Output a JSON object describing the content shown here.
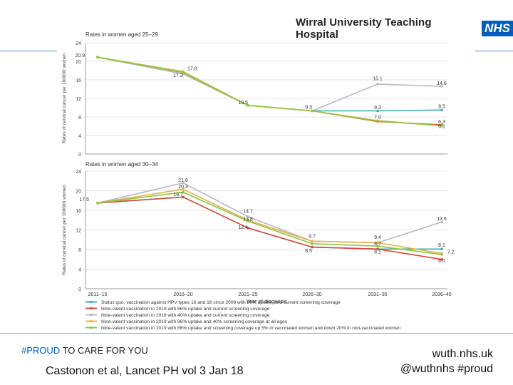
{
  "header": {
    "org_name": "Wirral University Teaching Hospital",
    "logo_text": "NHS"
  },
  "footer": {
    "tag_accent": "#PROUD",
    "tag_rest": " TO CARE FOR YOU",
    "citation": "Castonon et al, Lancet PH vol 3 Jan 18",
    "web": "wuth.nhs.uk",
    "social": "@wuthnhs #proud"
  },
  "colors": {
    "nhs_blue": "#005eb8"
  },
  "chart_data": [
    {
      "type": "line",
      "title": "Rates in women aged 25–29",
      "ylabel": "Rates of cervical cancer per 100000 women",
      "ylim": [
        0,
        24
      ],
      "yticks": [
        0,
        4,
        8,
        12,
        16,
        20,
        24
      ],
      "categories": [
        "2011–15",
        "2016–20",
        "2021–25",
        "2026–30",
        "2031–35",
        "2036–40"
      ],
      "series": [
        {
          "color": "#3fa9b8",
          "values": [
            20.9,
            17.3,
            10.5,
            9.3,
            9.3,
            9.5
          ]
        },
        {
          "color": "#d94a3a",
          "values": [
            20.9,
            17.3,
            10.5,
            9.3,
            7.0,
            6.3
          ]
        },
        {
          "color": "#b8b8c8",
          "values": [
            20.9,
            17.3,
            10.5,
            9.3,
            15.1,
            14.6
          ]
        },
        {
          "color": "#e8b04a",
          "values": [
            20.9,
            17.8,
            10.5,
            9.3,
            7.2,
            6.1
          ]
        },
        {
          "color": "#8cc63f",
          "values": [
            20.9,
            17.6,
            10.5,
            9.3,
            7.1,
            6.1
          ]
        }
      ],
      "data_labels": [
        "20.9",
        "17.8",
        "17.3",
        "10.5",
        "9.3",
        "15.1",
        "14.6",
        "9.3",
        "7.0",
        "9.5",
        "6.3",
        "6.1"
      ]
    },
    {
      "type": "line",
      "title": "Rates in women aged 30–34",
      "ylabel": "Rates of cervical cancer per 100000 women",
      "ylim": [
        0,
        24
      ],
      "yticks": [
        0,
        4,
        8,
        12,
        16,
        20,
        24
      ],
      "xlabel": "Year of diagnosis",
      "categories": [
        "2011–15",
        "2016–20",
        "2021–25",
        "2026–30",
        "2031–35",
        "2036–40"
      ],
      "series": [
        {
          "color": "#3fa9b8",
          "values": [
            17.5,
            18.7,
            12.4,
            8.5,
            8.1,
            8.1
          ]
        },
        {
          "color": "#d94a3a",
          "values": [
            17.5,
            18.7,
            12.4,
            8.5,
            8.1,
            6.0
          ]
        },
        {
          "color": "#b8b8c8",
          "values": [
            17.5,
            21.6,
            14.7,
            9.7,
            9.4,
            13.6
          ]
        },
        {
          "color": "#e8b04a",
          "values": [
            17.5,
            20.3,
            14.0,
            9.7,
            9.4,
            7.2
          ]
        },
        {
          "color": "#8cc63f",
          "values": [
            17.5,
            19.7,
            13.8,
            9.2,
            8.7,
            7.0
          ]
        }
      ],
      "data_labels": [
        "17.5",
        "18.7",
        "21.6",
        "20.3",
        "14.7",
        "13.8",
        "12.4",
        "9.7",
        "8.5",
        "9.4",
        "8.7",
        "8.1",
        "13.6",
        "8.1",
        "7.2",
        "6.0"
      ]
    }
  ],
  "legend": [
    {
      "color": "#3fa9b8",
      "text": "Status quo: vaccination against HPV types 16 and 18 since 2008 with 86% uptake, and current screening coverage"
    },
    {
      "color": "#d94a3a",
      "text": "Nine-valent vaccination in 2019 with 86% uptake and current screening coverage"
    },
    {
      "color": "#b8b8c8",
      "text": "Nine-valent vaccination in 2019 with 40% uptake and current screening coverage"
    },
    {
      "color": "#e8b04a",
      "text": "Nine-valent vaccination in 2019 with 86% uptake and 40% screening coverage at all ages"
    },
    {
      "color": "#8cc63f",
      "text": "Nine-valent vaccination in 2019 with 86% uptake and screening coverage up 5% in vaccinated women and down 20% in non-vaccinated women"
    }
  ]
}
